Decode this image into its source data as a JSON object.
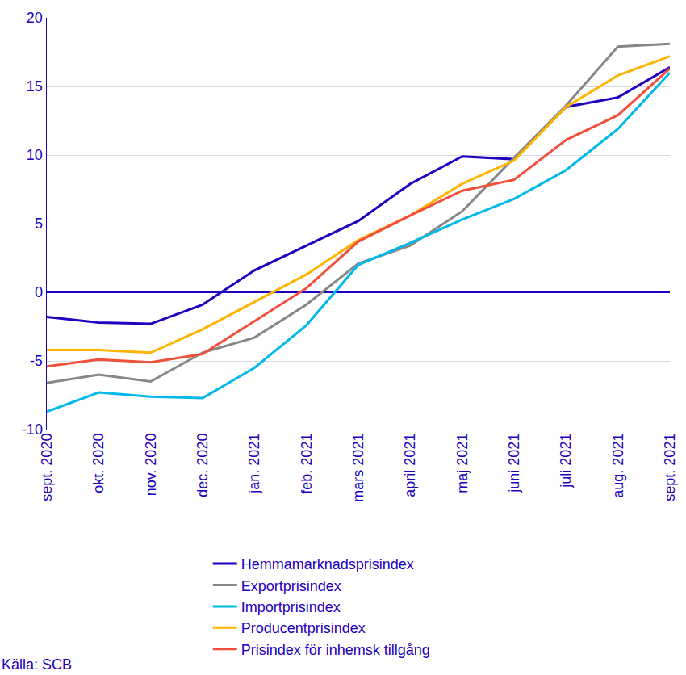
{
  "chart_data": {
    "type": "line",
    "categories": [
      "sept. 2020",
      "okt. 2020",
      "nov. 2020",
      "dec. 2020",
      "jan. 2021",
      "feb. 2021",
      "mars 2021",
      "april 2021",
      "maj 2021",
      "juni 2021",
      "juli 2021",
      "aug. 2021",
      "sept. 2021"
    ],
    "series": [
      {
        "name": "Hemmamarknadsprisindex",
        "color": "#1e00be",
        "values": [
          -1.8,
          -2.2,
          -2.3,
          -0.9,
          1.6,
          3.4,
          5.2,
          7.9,
          9.9,
          9.7,
          13.5,
          14.2,
          16.4
        ]
      },
      {
        "name": "Exportprisindex",
        "color": "#878787",
        "values": [
          -6.6,
          -6.0,
          -6.5,
          -4.4,
          -3.3,
          -0.9,
          2.1,
          3.4,
          5.9,
          9.8,
          13.6,
          17.9,
          18.1
        ]
      },
      {
        "name": "Importprisindex",
        "color": "#00b9e8",
        "values": [
          -8.7,
          -7.3,
          -7.6,
          -7.7,
          -5.5,
          -2.4,
          2.0,
          3.6,
          5.3,
          6.8,
          8.9,
          11.9,
          16.0
        ]
      },
      {
        "name": "Producentprisindex",
        "color": "#ffb400",
        "values": [
          -4.2,
          -4.2,
          -4.4,
          -2.7,
          -0.7,
          1.3,
          3.8,
          5.6,
          7.9,
          9.6,
          13.5,
          15.8,
          17.2
        ]
      },
      {
        "name": "Prisindex för inhemsk tillgång",
        "color": "#f0503c",
        "values": [
          -5.4,
          -4.9,
          -5.1,
          -4.5,
          -2.1,
          0.3,
          3.7,
          5.6,
          7.4,
          8.2,
          11.1,
          12.9,
          16.3
        ]
      }
    ],
    "ylim": [
      -10,
      20
    ],
    "yticks": [
      -10,
      -5,
      0,
      5,
      10,
      15,
      20
    ],
    "grid": true,
    "legend": "bottom",
    "source": "Källa: SCB"
  }
}
